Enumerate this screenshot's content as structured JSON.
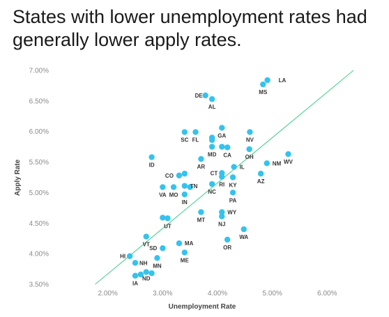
{
  "chart_data": {
    "type": "scatter",
    "title": "States with lower unemployment rates had generally lower apply rates.",
    "xlabel": "Unemployment Rate",
    "ylabel": "Apply Rate",
    "xlim": [
      1.0,
      7.0
    ],
    "ylim": [
      3.5,
      7.0
    ],
    "x_ticks": [
      "2.00%",
      "3.00%",
      "4.00%",
      "5.00%",
      "6.00%"
    ],
    "y_ticks": [
      "3.50%",
      "4.00%",
      "4.50%",
      "5.00%",
      "5.50%",
      "6.00%",
      "6.50%",
      "7.00%"
    ],
    "grid": false,
    "point_color": "#33c3ee",
    "trendline": {
      "color": "#4cd28f",
      "from": [
        1.77,
        3.5
      ],
      "to": [
        6.48,
        7.0
      ]
    },
    "points": [
      {
        "x": 4.91,
        "y": 6.84,
        "label": "LA"
      },
      {
        "x": 4.83,
        "y": 6.77,
        "label": "MS"
      },
      {
        "x": 3.78,
        "y": 6.59,
        "label": "DE"
      },
      {
        "x": 3.9,
        "y": 6.53,
        "label": "AL"
      },
      {
        "x": 3.4,
        "y": 5.99,
        "label": "SC"
      },
      {
        "x": 3.6,
        "y": 5.99,
        "label": "FL"
      },
      {
        "x": 4.08,
        "y": 6.06,
        "label": "GA"
      },
      {
        "x": 4.59,
        "y": 5.99,
        "label": "NV"
      },
      {
        "x": 3.9,
        "y": 5.9,
        "label": ""
      },
      {
        "x": 3.9,
        "y": 5.86,
        "label": ""
      },
      {
        "x": 3.9,
        "y": 5.75,
        "label": "MD"
      },
      {
        "x": 4.08,
        "y": 5.75,
        "label": ""
      },
      {
        "x": 4.18,
        "y": 5.74,
        "label": "CA"
      },
      {
        "x": 4.58,
        "y": 5.71,
        "label": "OH"
      },
      {
        "x": 2.8,
        "y": 5.58,
        "label": "ID"
      },
      {
        "x": 3.7,
        "y": 5.55,
        "label": "AR"
      },
      {
        "x": 5.29,
        "y": 5.63,
        "label": "WV"
      },
      {
        "x": 4.9,
        "y": 5.48,
        "label": "NM"
      },
      {
        "x": 4.3,
        "y": 5.42,
        "label": "IL"
      },
      {
        "x": 4.79,
        "y": 5.31,
        "label": "AZ"
      },
      {
        "x": 3.3,
        "y": 5.28,
        "label": "CO"
      },
      {
        "x": 3.4,
        "y": 5.31,
        "label": ""
      },
      {
        "x": 4.08,
        "y": 5.32,
        "label": "CT"
      },
      {
        "x": 4.08,
        "y": 5.26,
        "label": "RI"
      },
      {
        "x": 4.28,
        "y": 5.25,
        "label": "KY"
      },
      {
        "x": 3.0,
        "y": 5.09,
        "label": "VA"
      },
      {
        "x": 3.2,
        "y": 5.09,
        "label": "MO"
      },
      {
        "x": 3.4,
        "y": 5.11,
        "label": "TN"
      },
      {
        "x": 3.5,
        "y": 5.09,
        "label": ""
      },
      {
        "x": 3.9,
        "y": 5.14,
        "label": "NC"
      },
      {
        "x": 4.28,
        "y": 5.0,
        "label": "PA"
      },
      {
        "x": 3.4,
        "y": 4.97,
        "label": "IN"
      },
      {
        "x": 3.7,
        "y": 4.68,
        "label": "MT"
      },
      {
        "x": 4.08,
        "y": 4.68,
        "label": "WY"
      },
      {
        "x": 4.08,
        "y": 4.61,
        "label": "NJ"
      },
      {
        "x": 3.0,
        "y": 4.59,
        "label": ""
      },
      {
        "x": 3.09,
        "y": 4.58,
        "label": "UT"
      },
      {
        "x": 4.48,
        "y": 4.4,
        "label": "WA"
      },
      {
        "x": 4.18,
        "y": 4.23,
        "label": "OR"
      },
      {
        "x": 2.7,
        "y": 4.28,
        "label": "VT"
      },
      {
        "x": 3.3,
        "y": 4.17,
        "label": "MA"
      },
      {
        "x": 3.0,
        "y": 4.09,
        "label": "SD"
      },
      {
        "x": 3.4,
        "y": 4.02,
        "label": "ME"
      },
      {
        "x": 2.4,
        "y": 3.96,
        "label": "HI"
      },
      {
        "x": 2.9,
        "y": 3.93,
        "label": "MN"
      },
      {
        "x": 2.5,
        "y": 3.85,
        "label": "NH"
      },
      {
        "x": 2.7,
        "y": 3.7,
        "label": "ND"
      },
      {
        "x": 2.5,
        "y": 3.64,
        "label": "IA"
      },
      {
        "x": 2.6,
        "y": 3.66,
        "label": ""
      },
      {
        "x": 2.8,
        "y": 3.68,
        "label": ""
      }
    ]
  }
}
